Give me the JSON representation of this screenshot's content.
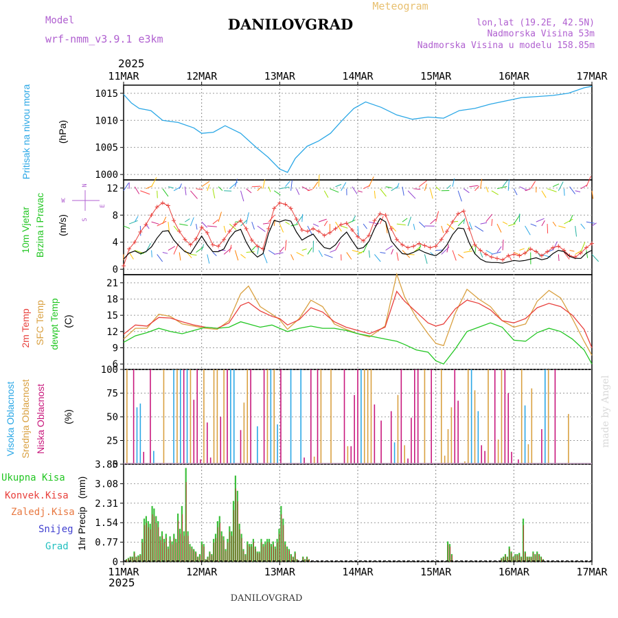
{
  "header": {
    "model_label": "Model",
    "model_name": "wrf-nmm_v3.9.1 e3km",
    "city": "DANILOVGRAD",
    "meteogram": "Meteogram",
    "lonlat": "lon,lat (19.2E, 42.5N)",
    "elev": "Nadmorska Visina 53m",
    "elev_model": "Nadmorska Visina u modelu 158.85m",
    "year_top": "2025",
    "year_bottom": "2025",
    "footer_city": "DANILOVGRAD",
    "watermark": "made by Angel"
  },
  "colors": {
    "pressure": "#2aa7e6",
    "t2m": "#e8403c",
    "tsfc": "#d9a040",
    "dewpt": "#22c622",
    "high_cloud": "#2aa7e6",
    "mid_cloud": "#d9a040",
    "low_cloud": "#c8177c",
    "precip_total": "#3cc03c",
    "precip_conv": "#b0402c",
    "gust": "#e8403c",
    "wind": "#000000",
    "compass": "#b060d0"
  },
  "chart_data": [
    {
      "type": "line",
      "name": "pressure",
      "ylabel": "Pritisak na nivou mora",
      "unit": "(hPa)",
      "ylim": [
        999,
        1016.5
      ],
      "yticks": [
        1000,
        1005,
        1010,
        1015
      ],
      "x_days": [
        0,
        0.1,
        0.2,
        0.35,
        0.5,
        0.7,
        0.9,
        1.0,
        1.15,
        1.3,
        1.5,
        1.7,
        1.85,
        2.0,
        2.1,
        2.2,
        2.35,
        2.5,
        2.65,
        2.8,
        2.95,
        3.1,
        3.3,
        3.5,
        3.7,
        3.9,
        4.1,
        4.3,
        4.5,
        4.7,
        4.9,
        5.1,
        5.3,
        5.5,
        5.7,
        5.9,
        6.0
      ],
      "values": [
        1014.8,
        1013.2,
        1012.2,
        1011.8,
        1010.0,
        1009.6,
        1008.6,
        1007.6,
        1007.8,
        1009.0,
        1007.6,
        1005.0,
        1003.2,
        1001.0,
        1000.4,
        1003.0,
        1005.2,
        1006.2,
        1007.6,
        1010.0,
        1012.2,
        1013.4,
        1012.4,
        1011.0,
        1010.2,
        1010.6,
        1010.4,
        1011.8,
        1012.2,
        1013.0,
        1013.6,
        1014.2,
        1014.4,
        1014.6,
        1015.0,
        1016.0,
        1016.3
      ]
    },
    {
      "type": "line",
      "name": "wind",
      "ylabel1": "10m Vjetar",
      "ylabel2": "Brzina i Pravac",
      "unit": "(m/s)",
      "ylim": [
        -0.8,
        13.2
      ],
      "yticks": [
        0,
        4,
        8,
        12
      ],
      "compass": {
        "n": "N",
        "s": "S",
        "e": "E",
        "w": "W"
      },
      "wind_speed": [
        1.5,
        2.4,
        2.7,
        2.3,
        2.6,
        3.3,
        4.6,
        5.6,
        5.7,
        4.3,
        3.4,
        2.6,
        2.3,
        3.6,
        4.9,
        3.6,
        2.6,
        2.6,
        3.0,
        4.6,
        5.6,
        5.9,
        4.0,
        2.6,
        1.8,
        2.3,
        5.3,
        7.2,
        7.0,
        7.3,
        7.1,
        5.5,
        4.3,
        4.8,
        5.2,
        4.1,
        3.2,
        3.0,
        3.6,
        4.7,
        5.5,
        4.2,
        3.0,
        3.2,
        4.1,
        6.0,
        7.5,
        7.0,
        4.2,
        3.2,
        2.3,
        2.2,
        2.5,
        2.9,
        2.5,
        2.2,
        2.0,
        2.6,
        3.6,
        5.1,
        6.1,
        6.0,
        3.9,
        2.3,
        1.5,
        1.1,
        1.0,
        1.0,
        0.9,
        1.1,
        1.3,
        1.2,
        1.3,
        1.5,
        1.7,
        1.4,
        1.6,
        2.3,
        2.8,
        2.6,
        1.9,
        1.6,
        1.6,
        2.4,
        2.8
      ],
      "gust": [
        0.5,
        3.0,
        4.0,
        5.5,
        6.6,
        8.0,
        9.2,
        9.8,
        9.4,
        7.2,
        5.6,
        4.4,
        3.6,
        4.5,
        6.2,
        5.4,
        3.6,
        3.4,
        4.4,
        5.6,
        6.6,
        7.2,
        6.0,
        4.3,
        3.4,
        3.0,
        6.0,
        9.0,
        9.8,
        9.6,
        9.0,
        7.4,
        5.8,
        5.6,
        6.0,
        5.6,
        5.0,
        5.4,
        6.0,
        6.6,
        6.8,
        5.8,
        4.8,
        4.2,
        5.0,
        7.2,
        8.2,
        8.0,
        6.0,
        4.4,
        3.6,
        3.2,
        3.4,
        3.8,
        3.5,
        3.2,
        3.4,
        4.4,
        5.6,
        7.0,
        8.2,
        8.6,
        6.0,
        3.6,
        2.8,
        2.2,
        1.8,
        1.6,
        1.4,
        2.0,
        2.2,
        2.0,
        2.4,
        3.0,
        2.6,
        2.0,
        2.6,
        3.2,
        3.4,
        2.8,
        2.0,
        1.8,
        2.4,
        3.2,
        3.8
      ]
    },
    {
      "type": "line",
      "name": "temperature",
      "ylabel1": "2m Temp",
      "ylabel2": "SFC Temp",
      "ylabel3": "dewpt Temp",
      "unit": "(C)",
      "ylim": [
        5,
        22.5
      ],
      "yticks": [
        6,
        9,
        12,
        15,
        18,
        21
      ],
      "x_days": [
        0,
        0.15,
        0.3,
        0.45,
        0.6,
        0.75,
        0.9,
        1.05,
        1.2,
        1.35,
        1.5,
        1.6,
        1.75,
        1.9,
        2.0,
        2.1,
        2.25,
        2.4,
        2.55,
        2.7,
        2.85,
        3.0,
        3.15,
        3.35,
        3.5,
        3.6,
        3.75,
        3.9,
        4.0,
        4.1,
        4.25,
        4.4,
        4.55,
        4.7,
        4.85,
        5.0,
        5.15,
        5.3,
        5.45,
        5.6,
        5.75,
        5.9,
        6.0
      ],
      "t2m": [
        11.5,
        13.2,
        13.0,
        14.6,
        14.5,
        13.8,
        13.2,
        12.8,
        12.6,
        13.6,
        16.8,
        17.4,
        15.8,
        14.8,
        14.4,
        13.2,
        14.2,
        16.4,
        15.6,
        13.8,
        12.8,
        12.2,
        11.6,
        12.8,
        19.4,
        17.6,
        15.6,
        13.6,
        13.0,
        13.4,
        16.2,
        17.8,
        17.2,
        16.0,
        14.0,
        13.6,
        14.4,
        16.4,
        17.2,
        16.6,
        15.0,
        12.4,
        9.0
      ],
      "tsfc": [
        10.6,
        12.6,
        12.6,
        15.2,
        14.8,
        13.4,
        13.0,
        12.6,
        12.4,
        14.0,
        19.0,
        20.4,
        16.6,
        15.2,
        14.2,
        12.4,
        14.4,
        17.8,
        16.6,
        13.4,
        12.4,
        11.6,
        11.0,
        13.0,
        22.6,
        18.4,
        14.6,
        11.6,
        9.8,
        9.4,
        15.4,
        19.8,
        18.0,
        16.6,
        14.0,
        12.8,
        13.4,
        17.6,
        19.6,
        18.2,
        14.4,
        10.2,
        7.6
      ],
      "dewpt": [
        10.0,
        11.2,
        11.8,
        12.6,
        12.0,
        11.6,
        12.2,
        12.8,
        12.6,
        12.8,
        13.8,
        13.4,
        12.8,
        13.2,
        12.6,
        12.0,
        12.6,
        13.0,
        12.6,
        12.6,
        12.2,
        11.6,
        11.2,
        10.6,
        10.2,
        9.6,
        8.6,
        8.2,
        6.6,
        6.0,
        8.8,
        12.0,
        12.8,
        13.6,
        12.8,
        10.4,
        10.2,
        11.8,
        12.6,
        12.0,
        10.6,
        8.6,
        6.0
      ]
    },
    {
      "type": "bar",
      "name": "cloud",
      "ylabel1": "Visoka Oblacnost",
      "ylabel2": "Srednja Oblacnost",
      "ylabel3": "Niska Oblacnost",
      "unit": "(%)",
      "ylim": [
        0,
        100
      ],
      "yticks": [
        0,
        25,
        50,
        75,
        100
      ]
    },
    {
      "type": "bar",
      "name": "precip",
      "legend": [
        "Ukupna Kisa",
        "Konvek.Kisa",
        "Zaledj.Kisa",
        "Snijeg",
        "Grad"
      ],
      "ylabel1": "1hr Precip",
      "unit": "(mm)",
      "ylim": [
        0,
        3.85
      ],
      "yticks": [
        0,
        0.77,
        1.54,
        2.31,
        3.08,
        3.85
      ],
      "ytick_labels": [
        "0",
        "0.77",
        "1.54",
        "2.31",
        "3.08",
        "3.85"
      ],
      "values": [
        0,
        0.1,
        0.15,
        0.2,
        0.2,
        0.4,
        0.2,
        0.25,
        0.3,
        0.9,
        1.7,
        1.8,
        1.6,
        1.5,
        2.2,
        2.1,
        1.8,
        1.6,
        1.0,
        1.2,
        0.9,
        1.1,
        0.6,
        1.0,
        0.8,
        1.1,
        0.9,
        1.9,
        1.3,
        2.2,
        1.2,
        3.7,
        1.2,
        0.7,
        0.6,
        0.5,
        0.4,
        0.2,
        0.3,
        0.8,
        0.7,
        0.1,
        0.2,
        0.4,
        0.3,
        0.9,
        1.1,
        1.6,
        1.8,
        1.2,
        1.0,
        0.5,
        0.9,
        1.4,
        1.2,
        2.4,
        3.4,
        2.8,
        1.5,
        1.1,
        0.5,
        0.3,
        0.8,
        0.7,
        0.7,
        0.9,
        0.6,
        0.4,
        0.4,
        0.9,
        0.7,
        0.8,
        0.9,
        0.9,
        0.7,
        0.8,
        0.6,
        0.9,
        1.3,
        2.2,
        1.7,
        0.8,
        0.6,
        0.5,
        0.3,
        0.2,
        0.4,
        0.1,
        0,
        0,
        0.2,
        0.1,
        0.2,
        0.1,
        0,
        0,
        0,
        0,
        0,
        0,
        0,
        0,
        0,
        0,
        0,
        0,
        0,
        0,
        0,
        0,
        0,
        0,
        0,
        0,
        0,
        0,
        0,
        0,
        0,
        0,
        0,
        0,
        0,
        0,
        0,
        0,
        0,
        0,
        0,
        0,
        0,
        0,
        0,
        0,
        0,
        0,
        0,
        0,
        0,
        0,
        0,
        0,
        0,
        0,
        0,
        0,
        0,
        0,
        0,
        0,
        0,
        0,
        0,
        0,
        0,
        0,
        0,
        0,
        0,
        0,
        0,
        0,
        0,
        0.8,
        0.7,
        0.3,
        0,
        0,
        0,
        0,
        0,
        0,
        0,
        0,
        0,
        0,
        0,
        0,
        0,
        0,
        0,
        0,
        0,
        0,
        0,
        0,
        0,
        0,
        0,
        0,
        0.15,
        0.2,
        0.3,
        0.2,
        0.6,
        0.4,
        0.2,
        0.3,
        0.3,
        0.35,
        0.2,
        1.7,
        0.4,
        0.2,
        0.2,
        0.2,
        0.4,
        0.3,
        0.4,
        0.3,
        0.2,
        0.1,
        0,
        0,
        0,
        0,
        0,
        0,
        0,
        0,
        0,
        0,
        0,
        0,
        0,
        0,
        0,
        0,
        0,
        0,
        0,
        0,
        0,
        0,
        0,
        0
      ]
    },
    {
      "type": "axis",
      "name": "time",
      "x_labels": [
        "11MAR",
        "12MAR",
        "13MAR",
        "14MAR",
        "15MAR",
        "16MAR",
        "17MAR"
      ]
    }
  ]
}
